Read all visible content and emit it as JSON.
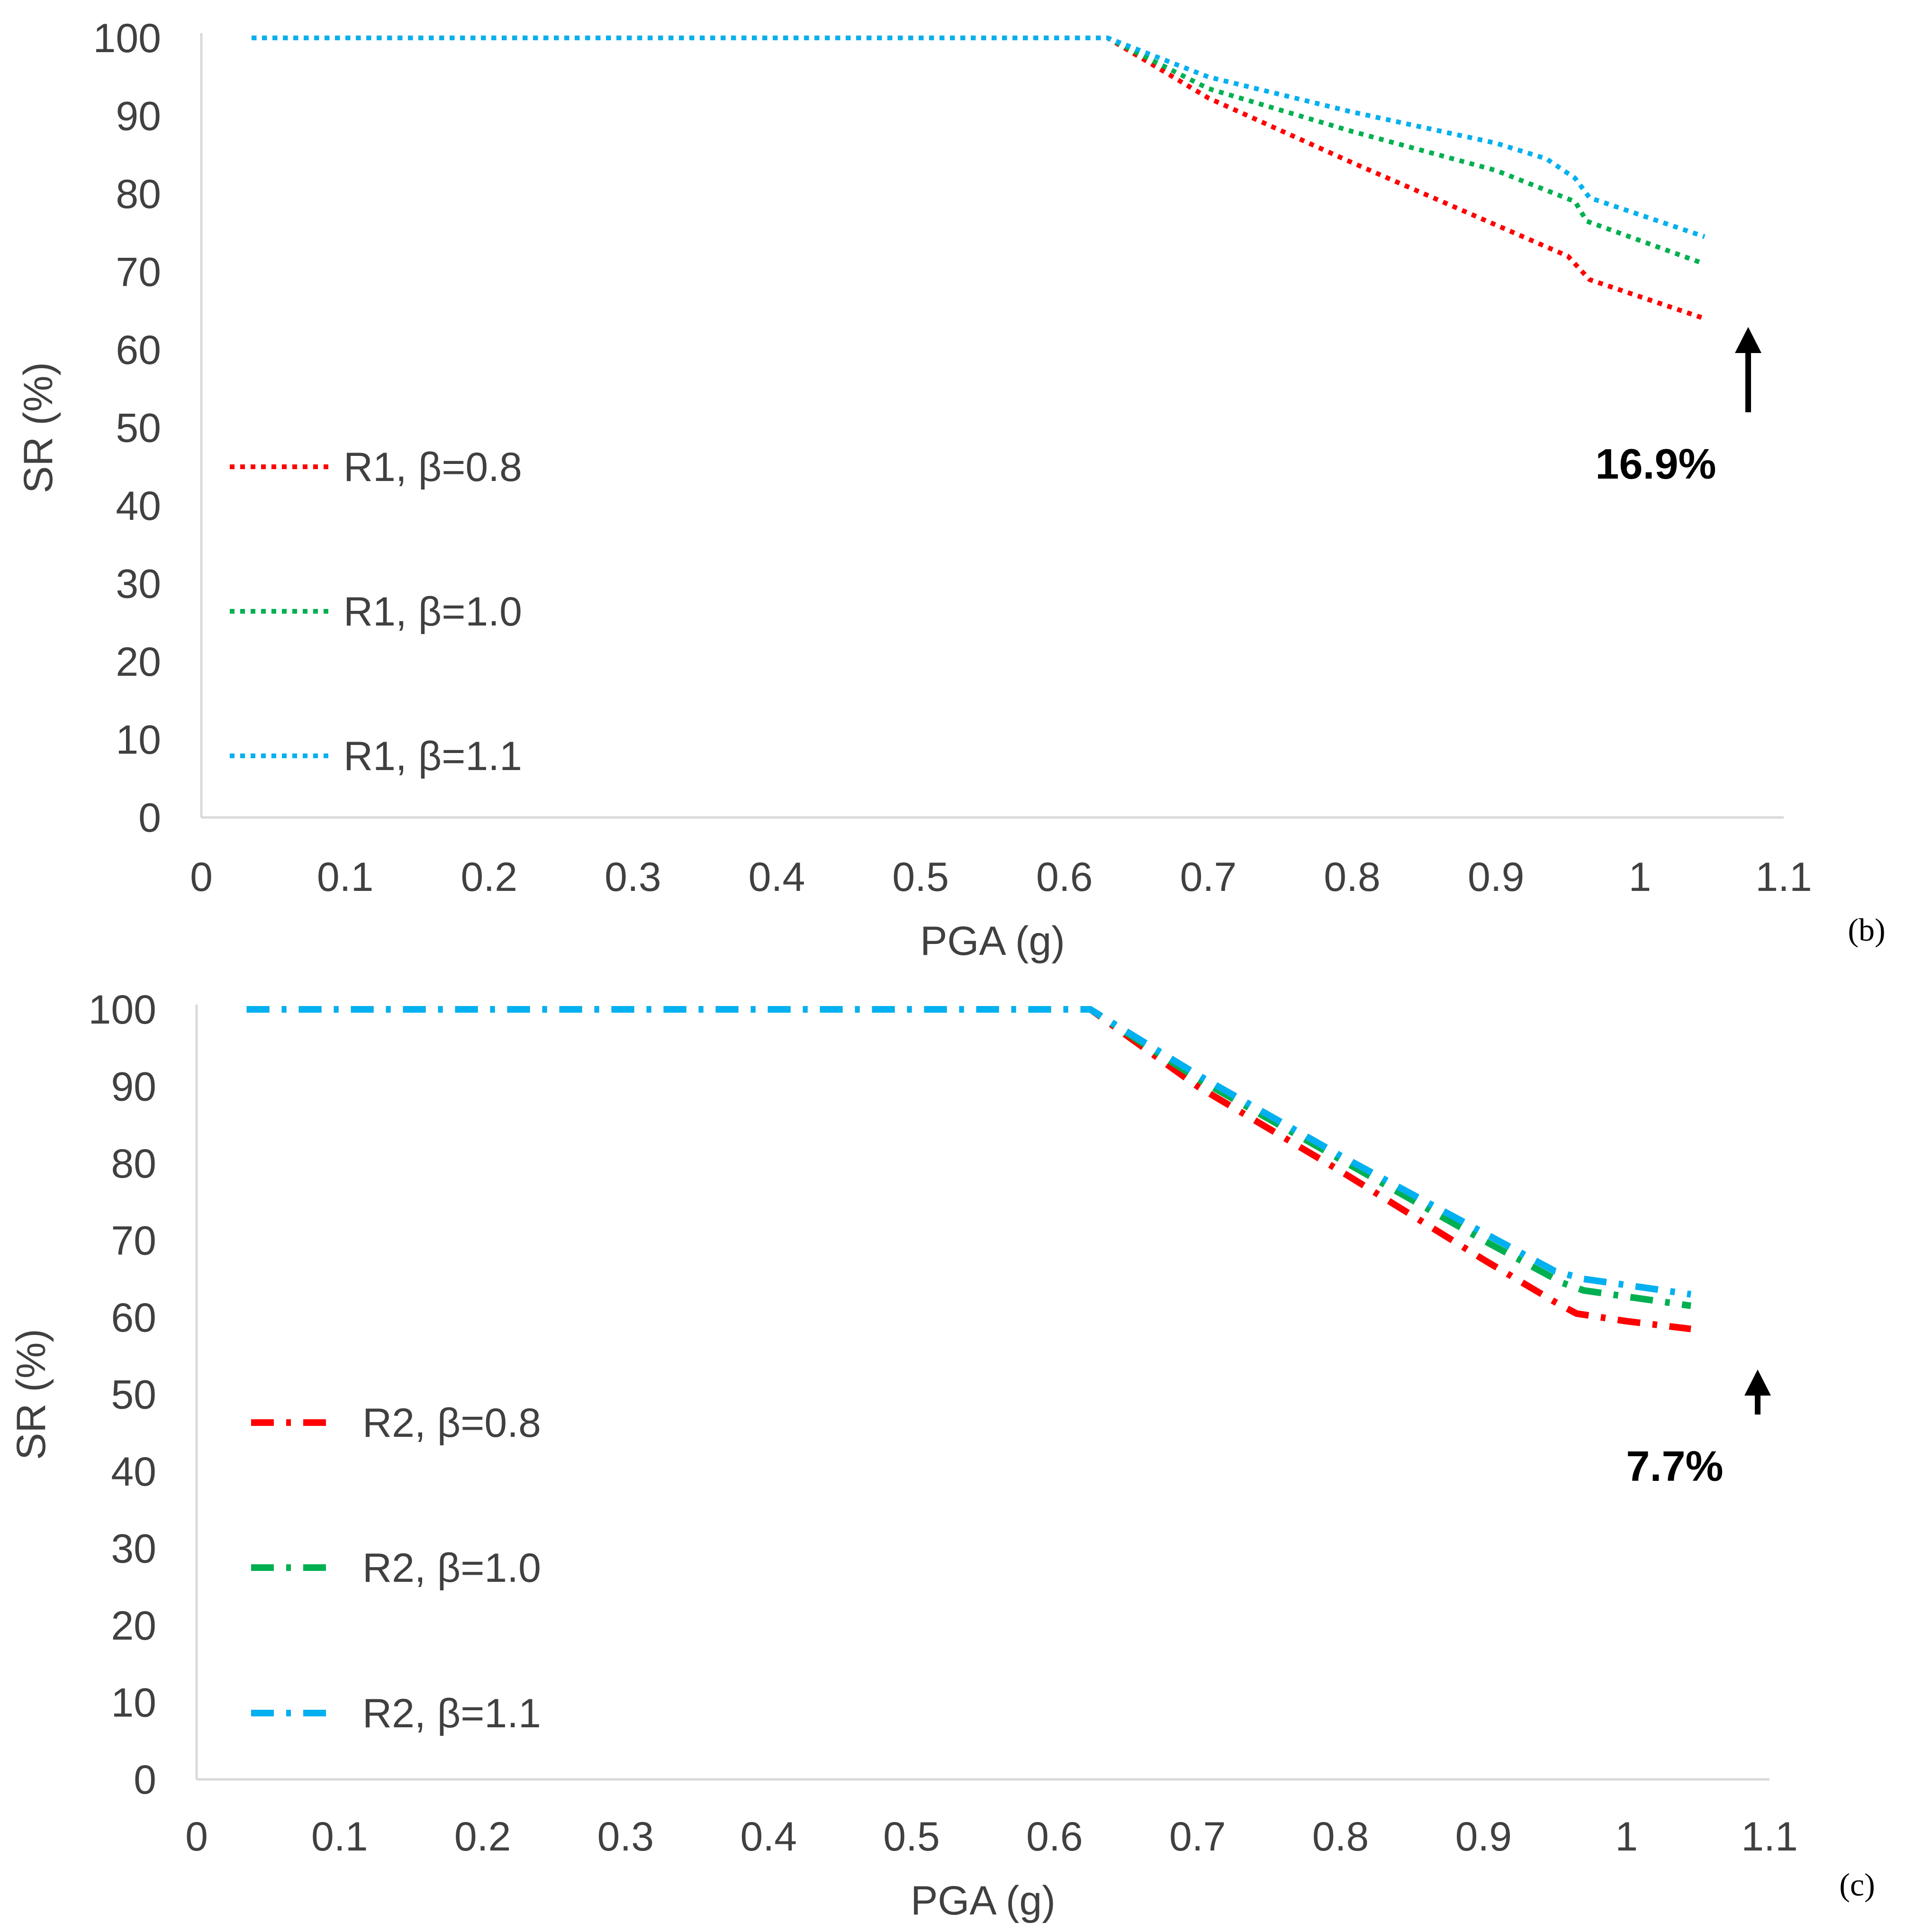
{
  "chart_data": [
    {
      "type": "line",
      "panel_label": "(b)",
      "xlabel": "PGA (g)",
      "ylabel": "SR (%)",
      "xlim": [
        0,
        1.1
      ],
      "ylim": [
        0,
        100
      ],
      "xticks": [
        "0",
        "0.1",
        "0.2",
        "0.3",
        "0.4",
        "0.5",
        "0.6",
        "0.7",
        "0.8",
        "0.9",
        "1",
        "1.1"
      ],
      "yticks": [
        "0",
        "10",
        "20",
        "30",
        "40",
        "50",
        "60",
        "70",
        "80",
        "90",
        "100"
      ],
      "grid": false,
      "legend_position": "left",
      "line_style": "dotted",
      "annotation": {
        "text": "16.9%",
        "arrow": "up"
      },
      "series": [
        {
          "name": "R1, β=0.8",
          "color": "#ff0000",
          "x": [
            0.035,
            0.63,
            0.7,
            0.8,
            0.9,
            0.95,
            0.965,
            1.045
          ],
          "y": [
            100,
            100,
            92.3,
            84,
            76,
            72,
            69,
            64
          ]
        },
        {
          "name": "R1, β=1.0",
          "color": "#00b050",
          "x": [
            0.035,
            0.63,
            0.7,
            0.8,
            0.9,
            0.955,
            0.963,
            1.045
          ],
          "y": [
            100,
            100,
            93.5,
            88,
            83,
            79,
            76.5,
            71
          ]
        },
        {
          "name": "R1, β=1.1",
          "color": "#00b0f0",
          "x": [
            0.035,
            0.63,
            0.7,
            0.8,
            0.9,
            0.935,
            0.955,
            0.965,
            1.045
          ],
          "y": [
            100,
            100,
            95,
            90.5,
            86.5,
            84.5,
            82,
            79.5,
            74.5
          ]
        }
      ]
    },
    {
      "type": "line",
      "panel_label": "(c)",
      "xlabel": "PGA (g)",
      "ylabel": "SR (%)",
      "xlim": [
        0,
        1.1
      ],
      "ylim": [
        0,
        100
      ],
      "xticks": [
        "0",
        "0.1",
        "0.2",
        "0.3",
        "0.4",
        "0.5",
        "0.6",
        "0.7",
        "0.8",
        "0.9",
        "1",
        "1.1"
      ],
      "yticks": [
        "0",
        "10",
        "20",
        "30",
        "40",
        "50",
        "60",
        "70",
        "80",
        "90",
        "100"
      ],
      "grid": false,
      "legend_position": "left",
      "line_style": "dash-dot",
      "annotation": {
        "text": "7.7%",
        "arrow": "up"
      },
      "series": [
        {
          "name": "R2, β=0.8",
          "color": "#ff0000",
          "x": [
            0.035,
            0.625,
            0.7,
            0.8,
            0.9,
            0.95,
            0.965,
            1.0,
            1.045
          ],
          "y": [
            100,
            100,
            90,
            79,
            67.5,
            62,
            60.5,
            59.5,
            58.5
          ]
        },
        {
          "name": "R2, β=1.0",
          "color": "#00b050",
          "x": [
            0.035,
            0.625,
            0.7,
            0.8,
            0.9,
            0.955,
            0.97,
            1.045
          ],
          "y": [
            100,
            100,
            91,
            80.5,
            70,
            64.5,
            63.5,
            61.5
          ]
        },
        {
          "name": "R2, β=1.1",
          "color": "#00b0f0",
          "x": [
            0.035,
            0.625,
            0.7,
            0.8,
            0.9,
            0.95,
            0.97,
            1.045
          ],
          "y": [
            100,
            100,
            91.5,
            81,
            71,
            66,
            65,
            63
          ]
        }
      ]
    }
  ]
}
